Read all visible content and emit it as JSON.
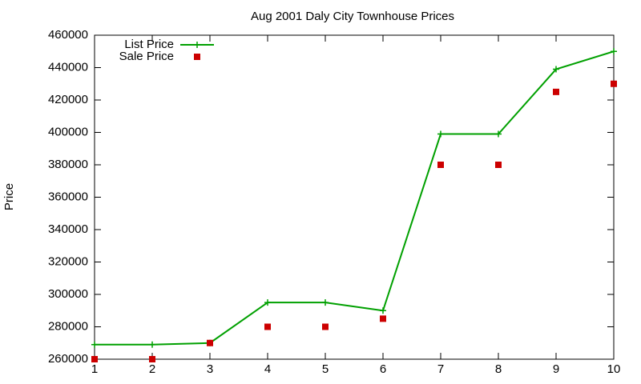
{
  "chart_data": {
    "type": "line",
    "title": "Aug 2001 Daly City Townhouse Prices",
    "y_label": "Price",
    "x": [
      1,
      2,
      3,
      4,
      5,
      6,
      7,
      8,
      9,
      10
    ],
    "series": [
      {
        "name": "List Price",
        "color": "#00a000",
        "line": true,
        "marker": "plus",
        "values": [
          269000,
          269000,
          270000,
          295000,
          295000,
          290000,
          399000,
          399000,
          439000,
          450000
        ]
      },
      {
        "name": "Sale Price",
        "color": "#cc0000",
        "line": false,
        "marker": "square",
        "values": [
          260000,
          260000,
          270000,
          280000,
          280000,
          285000,
          380000,
          380000,
          425000,
          430000
        ]
      }
    ],
    "xlim": [
      1,
      10
    ],
    "xticks": [
      1,
      2,
      3,
      4,
      5,
      6,
      7,
      8,
      9,
      10
    ],
    "ylim": [
      260000,
      460000
    ],
    "yticks": [
      260000,
      280000,
      300000,
      320000,
      340000,
      360000,
      380000,
      400000,
      420000,
      440000,
      460000
    ],
    "grid": false,
    "legend": "top-left"
  }
}
